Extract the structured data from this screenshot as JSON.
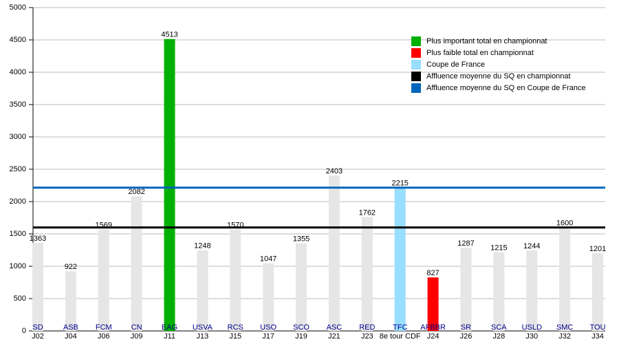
{
  "chart_data": {
    "type": "bar",
    "categories": [
      "J02",
      "J04",
      "J06",
      "J09",
      "J11",
      "J13",
      "J15",
      "J17",
      "J19",
      "J21",
      "J23",
      "8e tour CDF",
      "J24",
      "J26",
      "J28",
      "J30",
      "J32",
      "J34"
    ],
    "teams": [
      "SD",
      "ASB",
      "FCM",
      "CN",
      "EAG",
      "USVA",
      "RCS",
      "USO",
      "SCO",
      "ASC",
      "RED",
      "TFC",
      "AFBBR",
      "SR",
      "SCA",
      "USLD",
      "SMC",
      "TOU"
    ],
    "values": [
      1363,
      922,
      1569,
      2082,
      4513,
      1248,
      1570,
      1047,
      1355,
      2403,
      1762,
      2215,
      827,
      1287,
      1215,
      1244,
      1600,
      1201
    ],
    "colors": [
      "#e6e6e6",
      "#e6e6e6",
      "#e6e6e6",
      "#e6e6e6",
      "#00b000",
      "#e6e6e6",
      "#e6e6e6",
      "#e6e6e6",
      "#e6e6e6",
      "#e6e6e6",
      "#e6e6e6",
      "#99ddff",
      "#ff0000",
      "#e6e6e6",
      "#e6e6e6",
      "#e6e6e6",
      "#e6e6e6",
      "#e6e6e6"
    ],
    "ylim": [
      0,
      5000
    ],
    "yticks": [
      0,
      500,
      1000,
      1500,
      2000,
      2500,
      3000,
      3500,
      4000,
      4500,
      5000
    ],
    "grid": true,
    "reference_lines": [
      {
        "name": "Affluence moyenne du SQ en championnat",
        "value": 1600,
        "color": "#000000"
      },
      {
        "name": "Affluence moyenne du SQ en Coupe de France",
        "value": 2215,
        "color": "#0066bb"
      }
    ],
    "legend": [
      {
        "name": "Plus important total en championnat",
        "color": "#00b000"
      },
      {
        "name": "Plus faible total en championnat",
        "color": "#ff0000"
      },
      {
        "name": "Coupe de France",
        "color": "#99ddff"
      },
      {
        "name": "Affluence moyenne du SQ en championnat",
        "color": "#000000"
      },
      {
        "name": "Affluence moyenne du SQ en Coupe de France",
        "color": "#0066bb"
      }
    ]
  }
}
